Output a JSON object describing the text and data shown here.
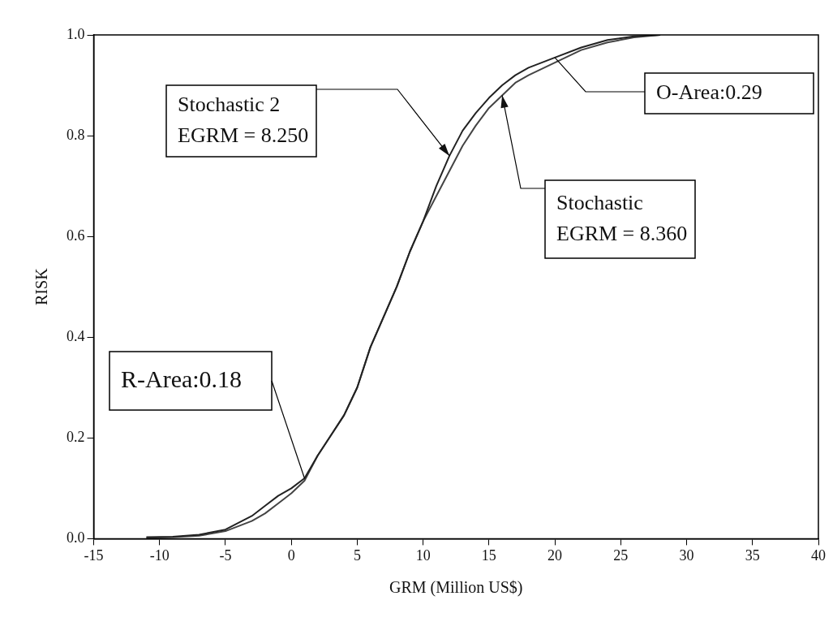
{
  "chart_data": {
    "type": "line",
    "xlabel": "GRM (Million US$)",
    "ylabel": "RISK",
    "x": [
      -11,
      -9,
      -7,
      -5,
      -3,
      -2,
      -1,
      0,
      1,
      2,
      3,
      4,
      5,
      6,
      7,
      8,
      9,
      10,
      11,
      12,
      13,
      14,
      15,
      16,
      17,
      18,
      20,
      22,
      24,
      26,
      28
    ],
    "series": [
      {
        "color": "#222222",
        "values": [
          0.003,
          0.004,
          0.008,
          0.018,
          0.045,
          0.065,
          0.085,
          0.1,
          0.12,
          0.165,
          0.205,
          0.245,
          0.3,
          0.38,
          0.44,
          0.5,
          0.57,
          0.63,
          0.7,
          0.76,
          0.81,
          0.845,
          0.875,
          0.9,
          0.92,
          0.935,
          0.955,
          0.975,
          0.99,
          0.997,
          1.0
        ]
      },
      {
        "color": "#444444",
        "values": [
          0.002,
          0.003,
          0.006,
          0.015,
          0.035,
          0.05,
          0.07,
          0.09,
          0.115,
          0.165,
          0.205,
          0.245,
          0.3,
          0.38,
          0.44,
          0.5,
          0.57,
          0.63,
          0.68,
          0.73,
          0.78,
          0.82,
          0.855,
          0.88,
          0.905,
          0.92,
          0.945,
          0.97,
          0.985,
          0.995,
          1.0
        ]
      }
    ],
    "xlim": [
      -15,
      40
    ],
    "xticks": [
      -15,
      -10,
      -5,
      0,
      5,
      10,
      15,
      20,
      25,
      30,
      35,
      40
    ],
    "ylim": [
      0,
      1
    ],
    "yticks": [
      {
        "value": 0,
        "label": "0.0"
      },
      {
        "value": 0.2,
        "label": "0.2"
      },
      {
        "value": 0.4,
        "label": "0.4"
      },
      {
        "value": 0.6,
        "label": "0.6"
      },
      {
        "value": 0.8,
        "label": "0.8"
      },
      {
        "value": 1,
        "label": "1.0"
      }
    ],
    "grid": false,
    "legend": false,
    "marker": "none",
    "line_style": "solid",
    "annotations": [
      {
        "text": "Stochastic 2\nEGRM = 8.250",
        "x": 12,
        "y": 0.76
      },
      {
        "text": "Stochastic\nEGRM = 8.360",
        "x": 16,
        "y": 0.88
      },
      {
        "text": "O-Area:0.29",
        "x": 20,
        "y": 0.955
      },
      {
        "text": "R-Area:0.18",
        "x": 1,
        "y": 0.12
      }
    ]
  }
}
